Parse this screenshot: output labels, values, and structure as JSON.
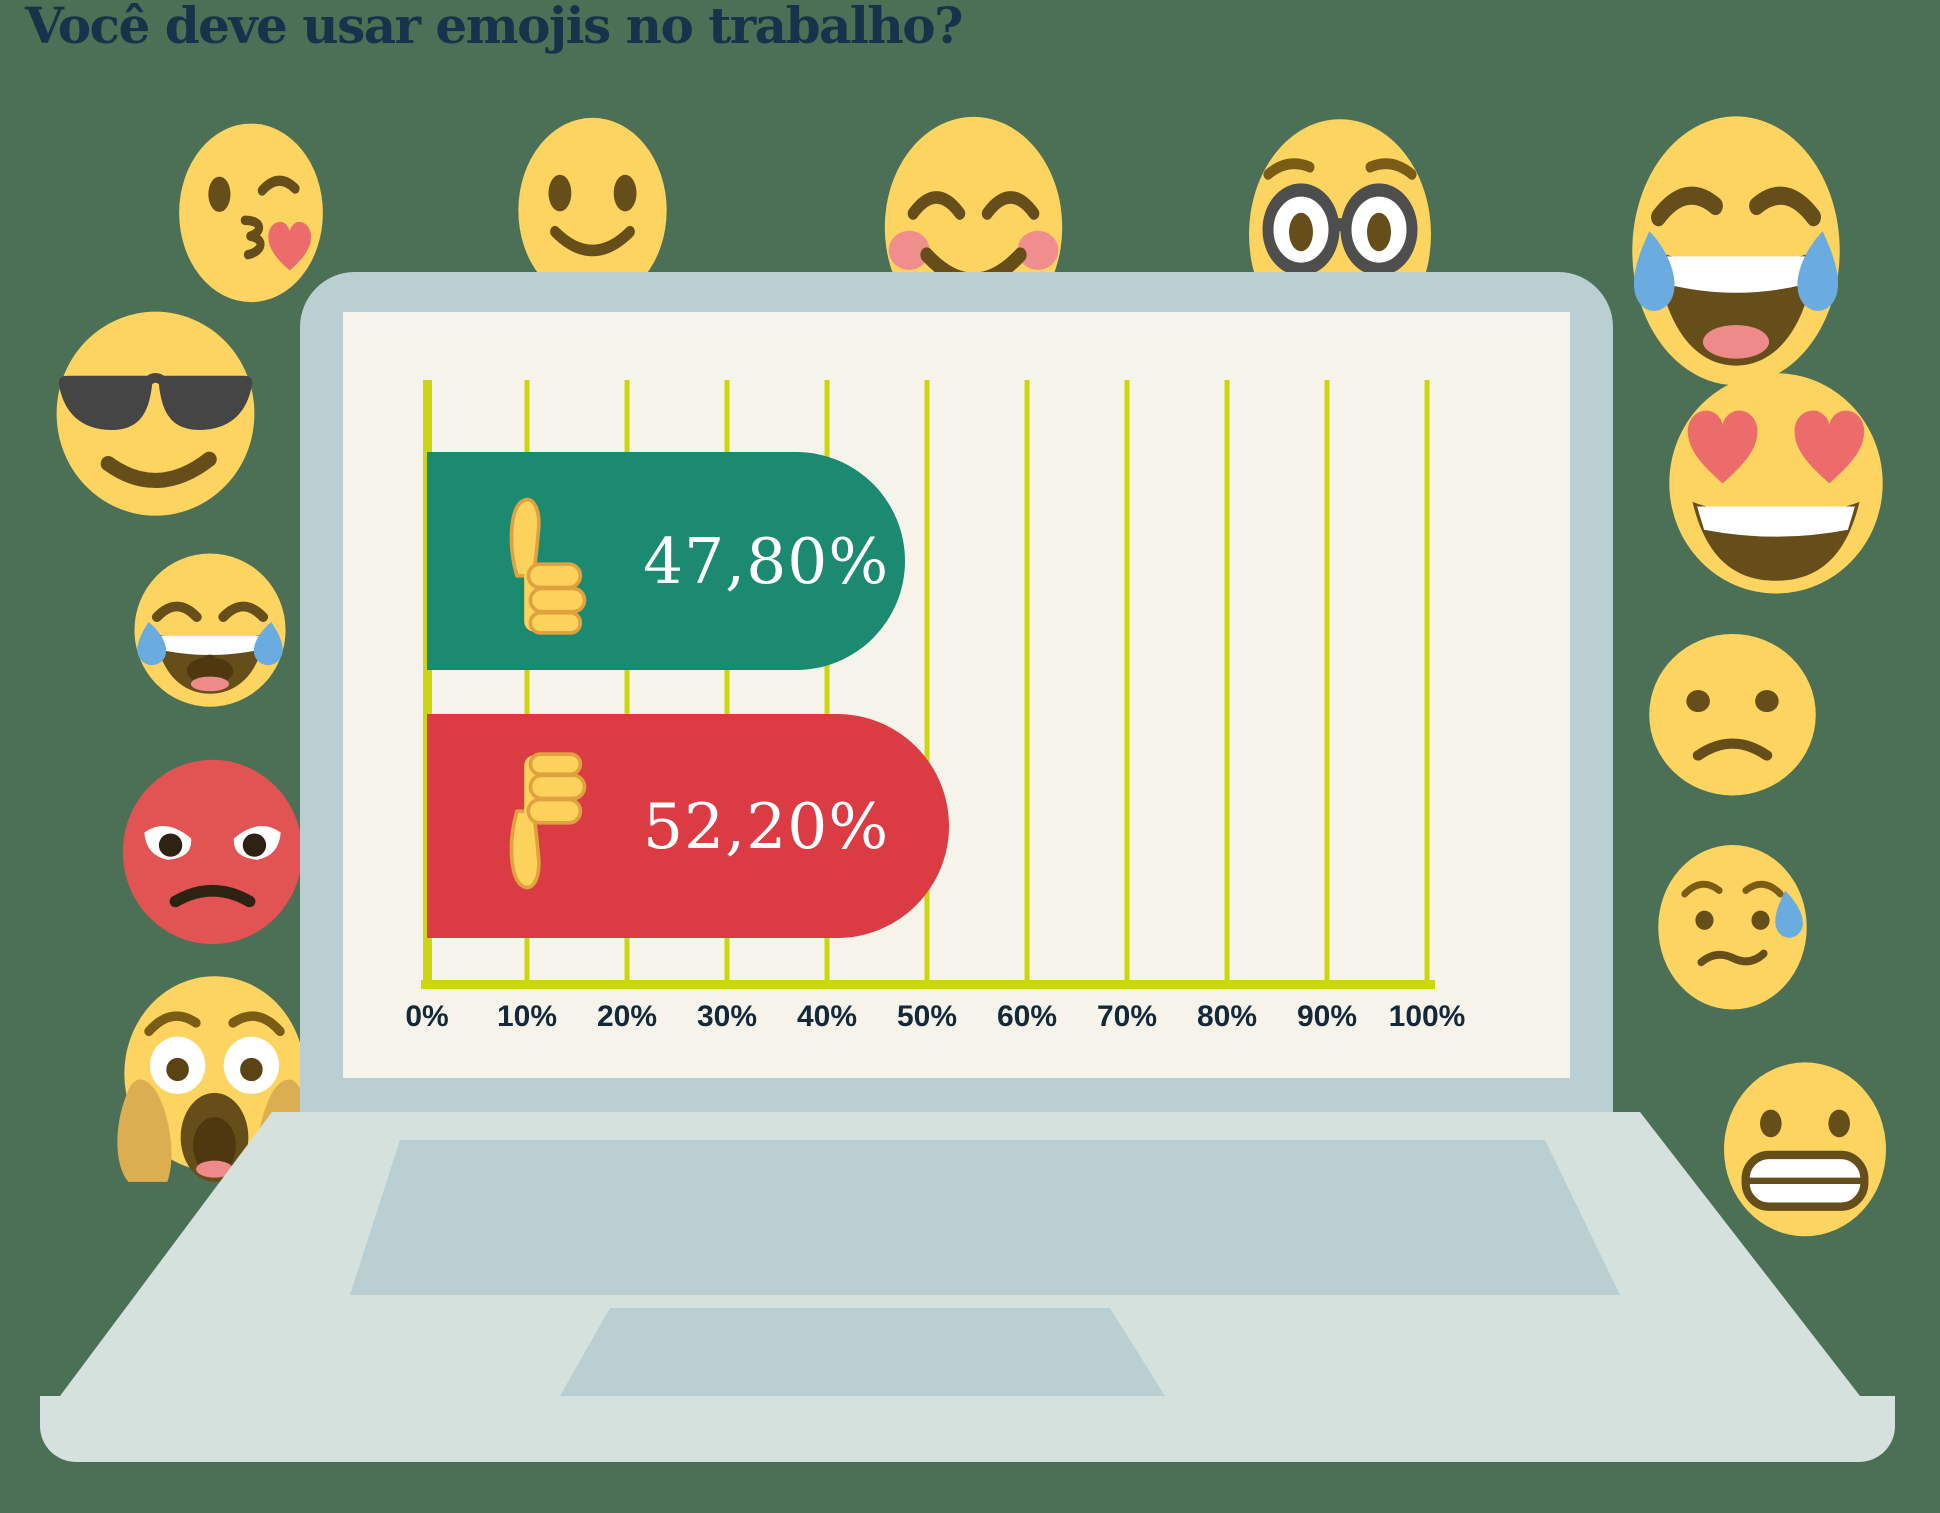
{
  "page": {
    "background_color": "#4C7055"
  },
  "title": {
    "text": "Você deve usar emojis no trabalho?",
    "color": "#16334B"
  },
  "chart_data": {
    "type": "bar",
    "orientation": "horizontal",
    "title": "Você deve usar emojis no trabalho?",
    "categories": [
      "thumbs-up",
      "thumbs-down"
    ],
    "series": [
      {
        "category": "thumbs-up",
        "icon": "thumbs-up-icon",
        "value": 47.8,
        "label": "47,80%",
        "color": "#1B8A70"
      },
      {
        "category": "thumbs-down",
        "icon": "thumbs-down-icon",
        "value": 52.2,
        "label": "52,20%",
        "color": "#DB3C43"
      }
    ],
    "x_axis": {
      "min": 0,
      "max": 100,
      "unit": "%",
      "ticks": [
        "0%",
        "10%",
        "20%",
        "30%",
        "40%",
        "50%",
        "60%",
        "70%",
        "80%",
        "90%",
        "100%"
      ]
    },
    "grid": "vertical",
    "gridline_color": "#CCD60F",
    "axis_color": "#CCD60F",
    "tick_label_color": "#13293A",
    "plot_background": "#F6F4EA",
    "legend": "none"
  },
  "laptop": {
    "bezel_color": "#B9CFD2",
    "screen_color": "#F6F4EA",
    "body_color": "#D4E1DD",
    "keyboard_color": "#B9CFD2"
  },
  "emojis": {
    "top_row": [
      "face-blowing-a-kiss",
      "slightly-smiling-face",
      "smiling-face-with-smiling-eyes",
      "nerd-face",
      "face-with-tears-of-joy"
    ],
    "left_column": [
      "smiling-face-with-sunglasses",
      "laughing-face-with-tears",
      "angry-face",
      "face-screaming-in-fear"
    ],
    "right_column": [
      "smiling-face-with-heart-eyes",
      "frowning-face",
      "sad-but-relieved-face",
      "grimacing-face"
    ],
    "face_color": "#FCD45F",
    "feature_color": "#664E1B",
    "tear_color": "#6AACE0",
    "heart_color": "#EC6B6B",
    "angry_face_color": "#E25353"
  }
}
